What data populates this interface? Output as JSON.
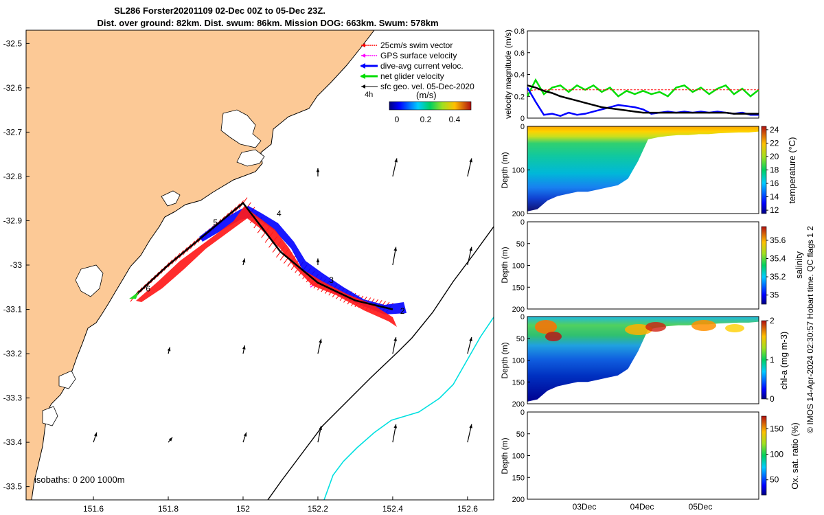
{
  "title": {
    "line1": "SL286 Forster20201109 02-Dec 00Z to 05-Dec 23Z.",
    "line2": "Dist. over ground: 82km. Dist. swum: 86km. Mission DOG: 663km. Swum: 578km"
  },
  "map": {
    "legend": [
      {
        "label": "25cm/s swim vector",
        "color": "#ff0000"
      },
      {
        "label": "GPS surface velocity",
        "color": "#ff00ff"
      },
      {
        "label": "dive-avg current veloc.",
        "color": "#0000ff"
      },
      {
        "label": "net glider velocity",
        "color": "#00dd00"
      },
      {
        "label": "sfc geo. vel. 05-Dec-2020",
        "color": "#000000"
      }
    ],
    "legend_extra": "4h",
    "colorbar": {
      "unit": "(m/s)",
      "ticks": [
        "0",
        "0.2",
        "0.4"
      ]
    },
    "isobaths_label": "isobaths: 0   200  1000m",
    "colors": {
      "land": "#fcc996",
      "isobath_200": "#000000",
      "isobath_1000": "#00e5e5"
    }
  },
  "chart_data": [
    {
      "type": "line",
      "id": "map",
      "xlim": [
        151.42,
        152.67
      ],
      "ylim": [
        -33.53,
        -32.47
      ],
      "xticks": [
        151.6,
        151.8,
        152,
        152.2,
        152.4,
        152.6
      ],
      "xtick_labels": [
        "151.6",
        "151.8",
        "152",
        "152.2",
        "152.4",
        "152.6"
      ],
      "yticks": [
        -32.5,
        -32.6,
        -32.7,
        -32.8,
        -32.9,
        -33,
        -33.1,
        -33.2,
        -33.3,
        -33.4,
        -33.5
      ],
      "ytick_labels": [
        "-32.5",
        "-32.6",
        "-32.7",
        "-32.8",
        "-32.9",
        "-33",
        "-33.1",
        "-33.2",
        "-33.3",
        "-33.4",
        "-33.5"
      ],
      "track": {
        "x": [
          151.71,
          151.8,
          151.9,
          152.0,
          152.1,
          152.2,
          152.3,
          152.4
        ],
        "y": [
          -33.07,
          -33.0,
          -32.93,
          -32.86,
          -32.97,
          -33.04,
          -33.08,
          -33.1
        ]
      },
      "day_markers": [
        {
          "label": "2",
          "x": 152.42,
          "y": -33.11
        },
        {
          "label": "3",
          "x": 152.23,
          "y": -33.04
        },
        {
          "label": "4",
          "x": 152.09,
          "y": -32.89
        },
        {
          "label": "5",
          "x": 151.92,
          "y": -32.91
        },
        {
          "label": "6",
          "x": 151.74,
          "y": -33.06
        }
      ],
      "geo_velocity_arrows": [
        {
          "x": 152.2,
          "y": -32.8,
          "u": 0.0,
          "v": 0.1
        },
        {
          "x": 152.4,
          "y": -32.8,
          "u": 0.05,
          "v": 0.22
        },
        {
          "x": 152.6,
          "y": -32.8,
          "u": 0.05,
          "v": 0.22
        },
        {
          "x": 152.0,
          "y": -33.0,
          "u": 0.02,
          "v": 0.08
        },
        {
          "x": 152.2,
          "y": -33.0,
          "u": 0.0,
          "v": 0.08
        },
        {
          "x": 152.4,
          "y": -33.0,
          "u": 0.04,
          "v": 0.22
        },
        {
          "x": 152.6,
          "y": -33.0,
          "u": 0.05,
          "v": 0.22
        },
        {
          "x": 151.8,
          "y": -33.2,
          "u": 0.02,
          "v": 0.08
        },
        {
          "x": 152.0,
          "y": -33.2,
          "u": 0.02,
          "v": 0.1
        },
        {
          "x": 152.2,
          "y": -33.2,
          "u": 0.04,
          "v": 0.18
        },
        {
          "x": 152.4,
          "y": -33.2,
          "u": 0.04,
          "v": 0.2
        },
        {
          "x": 152.6,
          "y": -33.2,
          "u": 0.05,
          "v": 0.2
        },
        {
          "x": 151.6,
          "y": -33.4,
          "u": 0.04,
          "v": 0.12
        },
        {
          "x": 151.8,
          "y": -33.4,
          "u": 0.05,
          "v": 0.06
        },
        {
          "x": 152.0,
          "y": -33.4,
          "u": 0.04,
          "v": 0.12
        },
        {
          "x": 152.2,
          "y": -33.4,
          "u": 0.04,
          "v": 0.2
        },
        {
          "x": 152.4,
          "y": -33.4,
          "u": 0.04,
          "v": 0.22
        },
        {
          "x": 152.6,
          "y": -33.4,
          "u": 0.05,
          "v": 0.22
        }
      ]
    },
    {
      "type": "line",
      "id": "velocity",
      "ylabel": "velocity magnitude (m/s)",
      "ylim": [
        0,
        0.8
      ],
      "yticks": [
        0,
        0.2,
        0.4,
        0.6,
        0.8
      ],
      "ytick_labels": [
        "0",
        "0.2",
        "0.4",
        "0.6",
        "0.8"
      ],
      "series": [
        {
          "color": "#00dd00",
          "values": [
            0.2,
            0.35,
            0.22,
            0.28,
            0.3,
            0.24,
            0.3,
            0.26,
            0.3,
            0.24,
            0.28,
            0.2,
            0.25,
            0.22,
            0.25,
            0.22,
            0.24,
            0.2,
            0.28,
            0.3,
            0.24,
            0.28,
            0.22,
            0.27,
            0.3,
            0.22,
            0.27,
            0.2,
            0.26
          ]
        },
        {
          "color": "#ff0000",
          "values": [
            0.25,
            0.26,
            0.26,
            0.26,
            0.26,
            0.26,
            0.26,
            0.26,
            0.26,
            0.26,
            0.26,
            0.26,
            0.26,
            0.26,
            0.26,
            0.26,
            0.26,
            0.26,
            0.26,
            0.26,
            0.26,
            0.26,
            0.26,
            0.26,
            0.26,
            0.26,
            0.26,
            0.26,
            0.26
          ]
        },
        {
          "color": "#0000ff",
          "values": [
            0.28,
            0.15,
            0.03,
            0.04,
            0.02,
            0.05,
            0.03,
            0.04,
            0.06,
            0.08,
            0.1,
            0.12,
            0.11,
            0.1,
            0.08,
            0.04,
            0.05,
            0.06,
            0.05,
            0.06,
            0.05,
            0.06,
            0.05,
            0.06,
            0.05,
            0.04,
            0.05,
            0.03,
            0.03
          ]
        },
        {
          "color": "#000000",
          "values": [
            0.3,
            0.28,
            0.25,
            0.23,
            0.2,
            0.18,
            0.16,
            0.14,
            0.12,
            0.1,
            0.09,
            0.08,
            0.07,
            0.06,
            0.05,
            0.05,
            0.05,
            0.05,
            0.05,
            0.05,
            0.05,
            0.05,
            0.05,
            0.05,
            0.05,
            0.04,
            0.04,
            0.04,
            0.04
          ]
        }
      ]
    },
    {
      "type": "heatmap",
      "id": "temperature",
      "ylabel": "Depth (m)",
      "ylim": [
        200,
        0
      ],
      "yticks": [
        0,
        100,
        200
      ],
      "ytick_labels": [
        "0",
        "100",
        "200"
      ],
      "colorbar_label": "temperature (°C)",
      "colorbar_range": [
        11.5,
        24.5
      ],
      "colorbar_ticks": [
        12,
        14,
        16,
        18,
        20,
        22,
        24
      ],
      "max_depth": [
        195,
        190,
        170,
        160,
        155,
        150,
        150,
        145,
        140,
        135,
        120,
        80,
        30,
        25,
        22,
        20,
        20,
        18,
        18,
        16,
        15,
        14,
        14,
        12
      ]
    },
    {
      "type": "heatmap",
      "id": "salinity",
      "ylabel": "Depth (m)",
      "ylim": [
        200,
        0
      ],
      "yticks": [
        0,
        50,
        100,
        150,
        200
      ],
      "ytick_labels": [
        "0",
        "50",
        "100",
        "150",
        "200"
      ],
      "colorbar_label": "salinity",
      "colorbar_range": [
        34.9,
        35.75
      ],
      "colorbar_ticks": [
        35,
        35.2,
        35.4,
        35.6
      ],
      "note": "no data shown"
    },
    {
      "type": "heatmap",
      "id": "chl-a",
      "ylabel": "Depth (m)",
      "ylim": [
        200,
        0
      ],
      "yticks": [
        0,
        50,
        100,
        150,
        200
      ],
      "ytick_labels": [
        "0",
        "50",
        "100",
        "150",
        "200"
      ],
      "colorbar_label": "chl-a (mg m-3)",
      "colorbar_range": [
        0,
        2
      ],
      "colorbar_ticks": [
        0,
        1,
        2
      ],
      "max_depth": [
        195,
        190,
        170,
        160,
        155,
        150,
        150,
        145,
        140,
        135,
        120,
        80,
        30,
        25,
        22,
        20,
        20,
        18,
        18,
        16,
        15,
        14,
        14,
        12
      ]
    },
    {
      "type": "heatmap",
      "id": "oxygen",
      "ylabel": "Depth (m)",
      "ylim": [
        200,
        0
      ],
      "yticks": [
        0,
        50,
        100,
        150,
        200
      ],
      "ytick_labels": [
        "0",
        "50",
        "100",
        "150",
        "200"
      ],
      "colorbar_label": "Ox. sat. ratio (%)",
      "colorbar_range": [
        20,
        175
      ],
      "colorbar_ticks": [
        50,
        100,
        150
      ],
      "xtick_labels": [
        "03Dec",
        "04Dec",
        "05Dec"
      ],
      "note": "no data shown"
    }
  ],
  "credit": "© IMOS 14-Apr-2024 02:30:57 Hobart time. QC flags 1  2"
}
